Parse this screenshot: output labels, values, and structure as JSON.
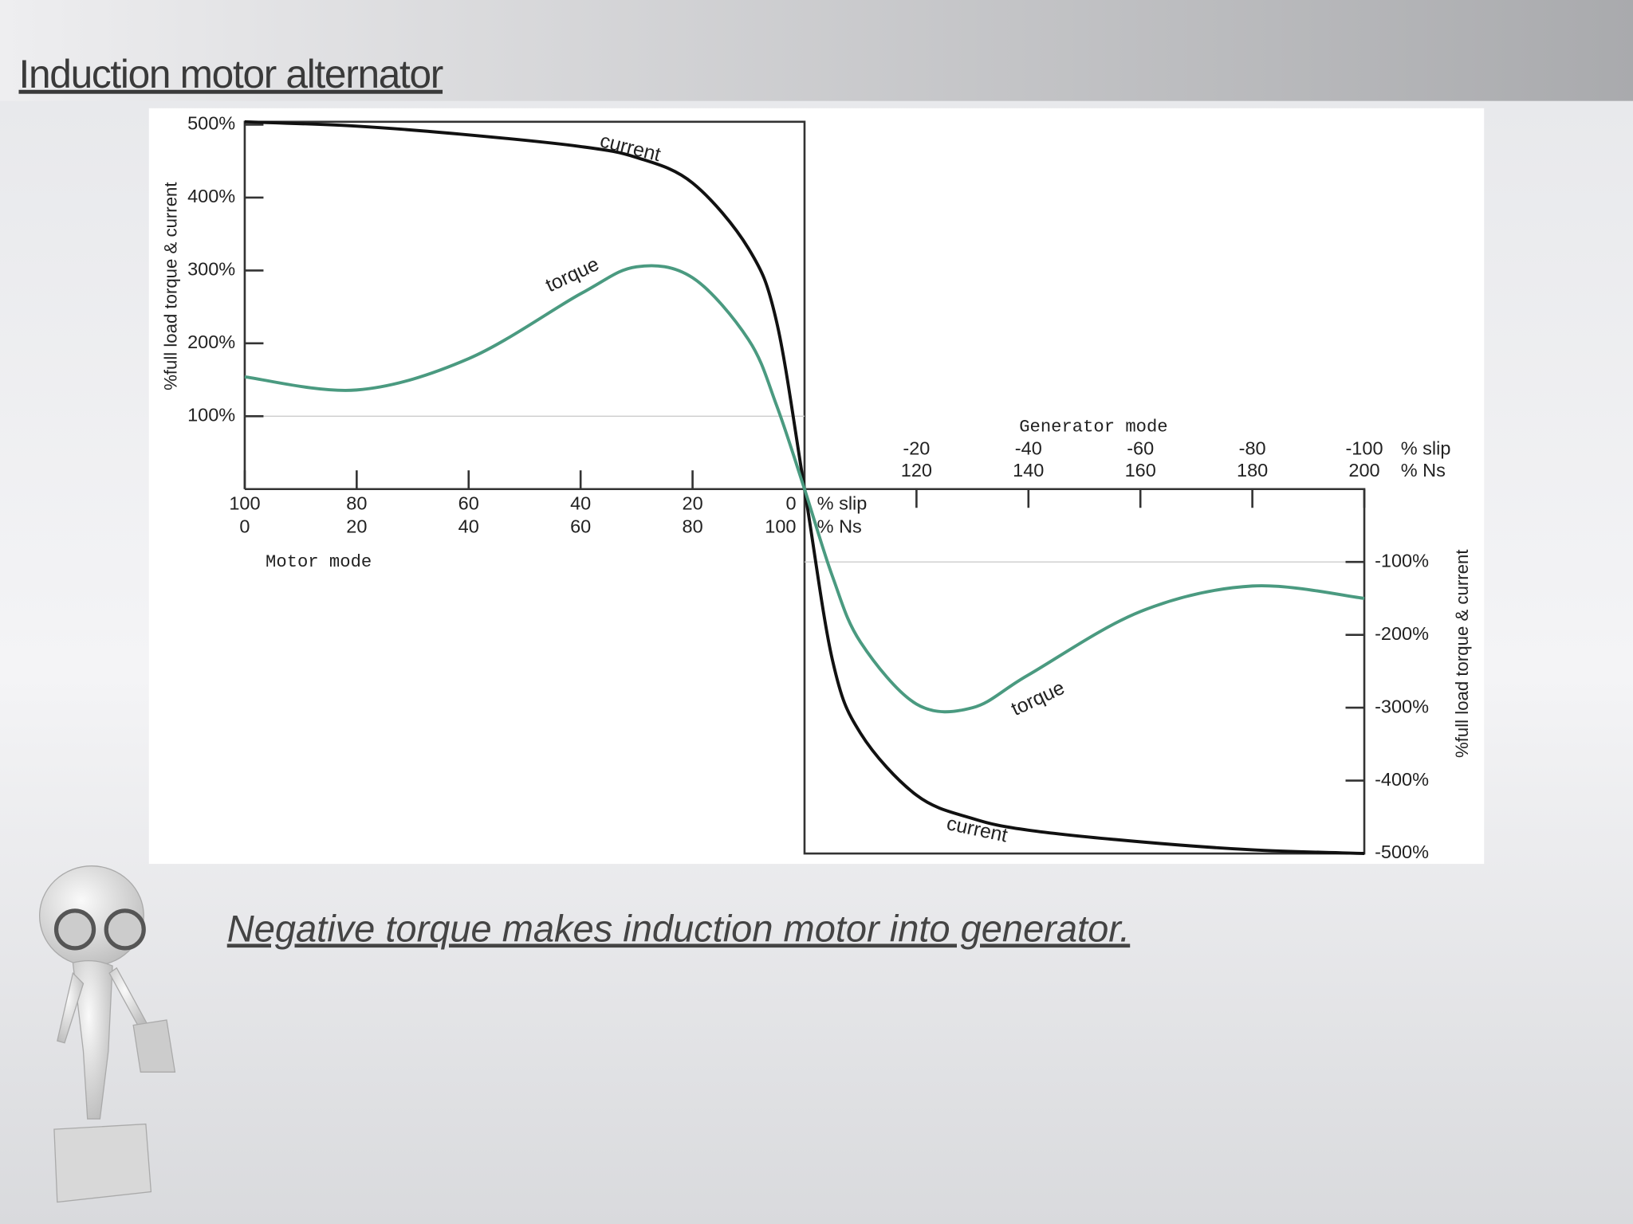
{
  "slide": {
    "title": "Induction motor alternator",
    "caption": "Negative torque makes induction motor into generator."
  },
  "chart_data": {
    "type": "line",
    "x": [
      100,
      80,
      60,
      40,
      30,
      20,
      10,
      5,
      0,
      -5,
      -10,
      -20,
      -30,
      -40,
      -60,
      -80,
      -100
    ],
    "series": [
      {
        "name": "current",
        "color": "#111111",
        "values": [
          504,
          498,
          486,
          470,
          455,
          420,
          330,
          230,
          0,
          -235,
          -335,
          -420,
          -452,
          -468,
          -484,
          -495,
          -500
        ]
      },
      {
        "name": "torque",
        "color": "#4a9a80",
        "values": [
          154,
          136,
          179,
          268,
          305,
          290,
          205,
          115,
          0,
          -120,
          -210,
          -295,
          -300,
          -255,
          -168,
          -133,
          -150
        ]
      }
    ],
    "xlim": [
      100,
      -100
    ],
    "ylim": [
      -500,
      504
    ],
    "xticks": [
      100,
      80,
      60,
      40,
      20,
      0,
      -20,
      -40,
      -60,
      -80,
      -100
    ],
    "ns_ticks": [
      0,
      20,
      40,
      60,
      80,
      100,
      120,
      140,
      160,
      180,
      200
    ],
    "slip_unit": "% slip",
    "ns_unit": "% Ns",
    "motor_label": "Motor mode",
    "generator_label": "Generator mode",
    "yticks": [
      {
        "value": 100,
        "label": "100%"
      },
      {
        "value": 200,
        "label": "200%"
      },
      {
        "value": 300,
        "label": "300%"
      },
      {
        "value": 400,
        "label": "400%"
      },
      {
        "value": 500,
        "label": "500%"
      }
    ],
    "y2ticks": [
      {
        "value": -100,
        "label": "-100%"
      },
      {
        "value": -200,
        "label": "-200%"
      },
      {
        "value": -300,
        "label": "-300%"
      },
      {
        "value": -400,
        "label": "-400%"
      },
      {
        "value": -500,
        "label": "-500%"
      }
    ],
    "ylabel": "%full load torque & current",
    "grid": true
  }
}
